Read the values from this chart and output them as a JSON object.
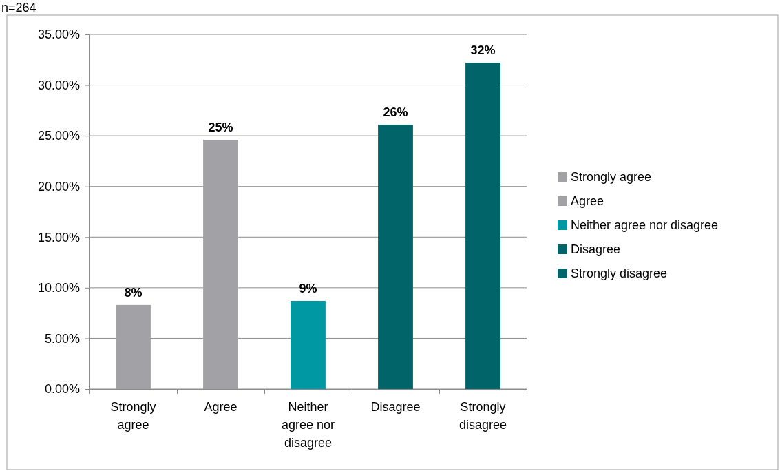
{
  "chart_data": {
    "type": "bar",
    "title": "n=264",
    "categories": [
      "Strongly agree",
      "Agree",
      "Neither agree nor disagree",
      "Disagree",
      "Strongly disagree"
    ],
    "series": [
      {
        "name": "Strongly agree",
        "color": "#a2a2a6",
        "values": [
          8.3,
          null,
          null,
          null,
          null
        ],
        "value_labels": [
          "8%",
          null,
          null,
          null,
          null
        ]
      },
      {
        "name": "Agree",
        "color": "#a2a2a6",
        "values": [
          null,
          24.6,
          null,
          null,
          null
        ],
        "value_labels": [
          null,
          "25%",
          null,
          null,
          null
        ]
      },
      {
        "name": "Neither agree nor disagree",
        "color": "#0099a3",
        "values": [
          null,
          null,
          8.7,
          null,
          null
        ],
        "value_labels": [
          null,
          null,
          "9%",
          null,
          null
        ]
      },
      {
        "name": "Disagree",
        "color": "#006468",
        "values": [
          null,
          null,
          null,
          26.1,
          null
        ],
        "value_labels": [
          null,
          null,
          null,
          "26%",
          null
        ]
      },
      {
        "name": "Strongly disagree",
        "color": "#006468",
        "values": [
          null,
          null,
          null,
          null,
          32.2
        ],
        "value_labels": [
          null,
          null,
          null,
          null,
          "32%"
        ]
      }
    ],
    "ylim": [
      0,
      35
    ],
    "yticks": [
      {
        "value": 0,
        "label": "0.00%"
      },
      {
        "value": 5,
        "label": "5.00%"
      },
      {
        "value": 10,
        "label": "10.00%"
      },
      {
        "value": 15,
        "label": "15.00%"
      },
      {
        "value": 20,
        "label": "20.00%"
      },
      {
        "value": 25,
        "label": "25.00%"
      },
      {
        "value": 30,
        "label": "30.00%"
      },
      {
        "value": 35,
        "label": "35.00%"
      }
    ],
    "grid": "y",
    "legend": "right"
  }
}
